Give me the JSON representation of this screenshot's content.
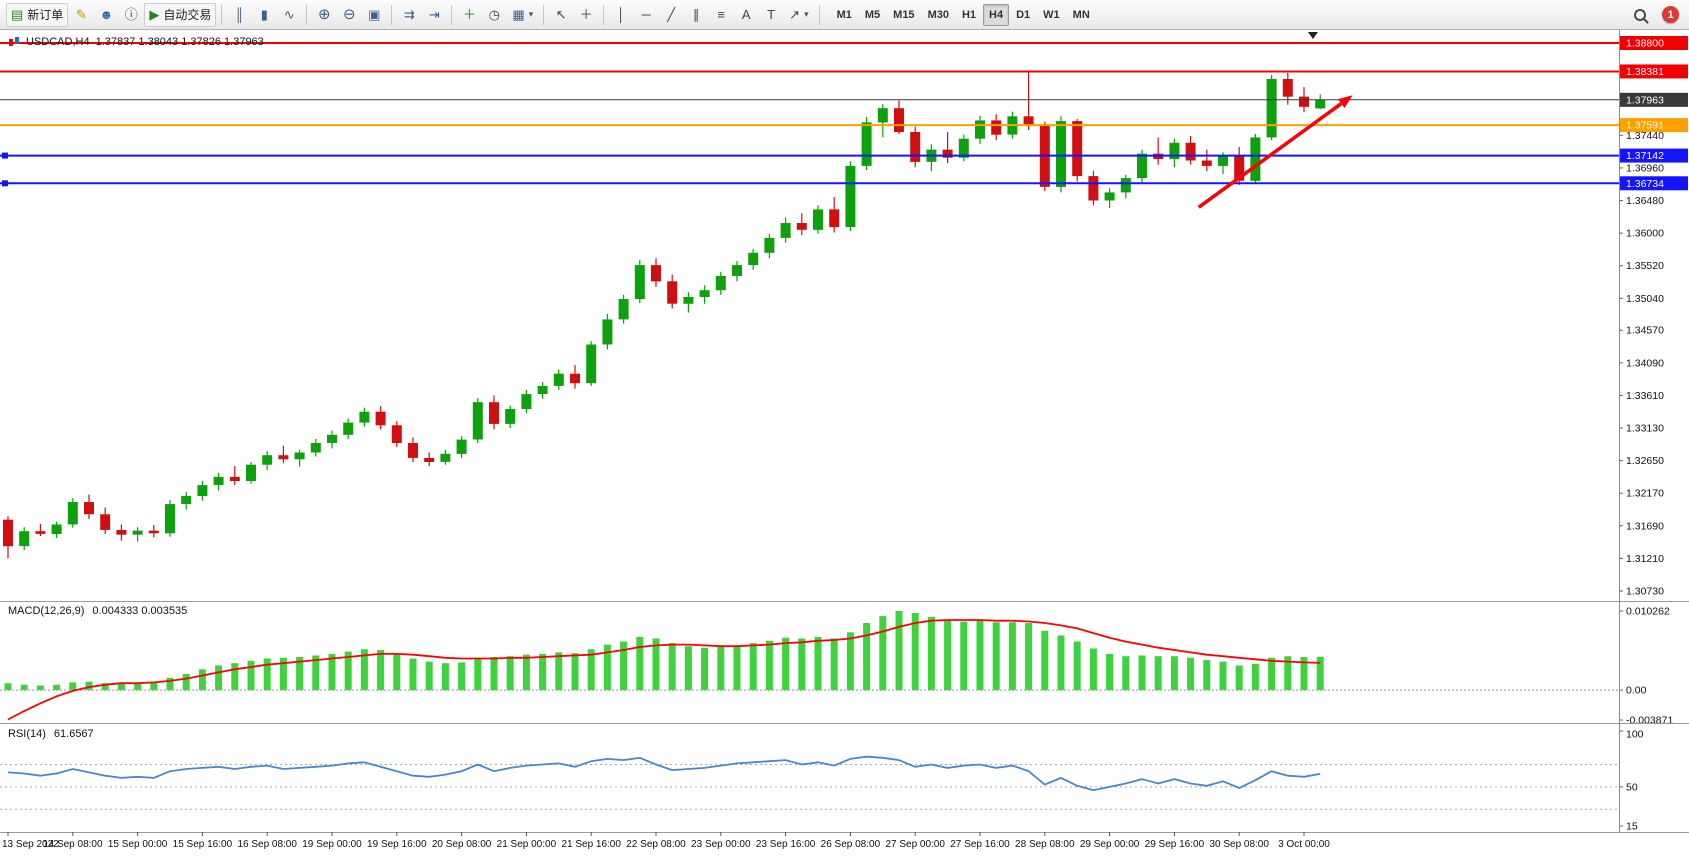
{
  "toolbar": {
    "new_order_label": "新订单",
    "algo_trading_label": "自动交易",
    "timeframes": [
      "M1",
      "M5",
      "M15",
      "M30",
      "H1",
      "H4",
      "D1",
      "W1",
      "MN"
    ],
    "active_timeframe": "H4",
    "notification_count": "1"
  },
  "icons": {
    "new_order": "▤",
    "metaeditor": "✎",
    "community": "☻",
    "help": "ⓘ",
    "algo_trading": "▶",
    "chart_bars": "║",
    "chart_candles": "▮",
    "chart_line": "∿",
    "zoom_in": "⊕",
    "zoom_out": "⊖",
    "tile_windows": "▣",
    "auto_scroll": "⇉",
    "chart_shift": "⇥",
    "indicators": "＋",
    "periods": "◷",
    "templates": "▦",
    "dropdown": "▾",
    "cursor": "↖",
    "crosshair": "＋",
    "vertical_line": "│",
    "horizontal_line": "─",
    "trendline": "╱",
    "channel": "∥",
    "fibonacci": "≡",
    "text_tool": "A",
    "label_tool": "T",
    "arrow_tool": "↗"
  },
  "colors": {
    "bull": "#0da10d",
    "bear": "#d01010",
    "macd_hist": "#3fd23f",
    "macd_signal": "#ff0000",
    "rsi_line": "#4a86c8",
    "line_red": "#f00000",
    "line_blue": "#1414ff",
    "line_orange": "#ffa000",
    "line_current": "#3a3a3a",
    "arrow": "#ff0000",
    "axis_text": "#111111"
  },
  "chart_data": [
    {
      "id": "price",
      "type": "candlestick",
      "symbol": "USDCAD",
      "timeframe": "H4",
      "symbol_label": "USDCAD,H4",
      "ohlc_label": "1.37837 1.38043 1.37826 1.37963",
      "ylim": [
        1.3073,
        1.388
      ],
      "ohlc": [
        [
          1.3178,
          1.3183,
          1.3121,
          1.3139
        ],
        [
          1.3139,
          1.3167,
          1.3133,
          1.3161
        ],
        [
          1.3161,
          1.3172,
          1.3154,
          1.3157
        ],
        [
          1.3157,
          1.3175,
          1.3151,
          1.3171
        ],
        [
          1.3171,
          1.321,
          1.3166,
          1.3204
        ],
        [
          1.3204,
          1.3215,
          1.3179,
          1.3186
        ],
        [
          1.3186,
          1.3196,
          1.3157,
          1.3163
        ],
        [
          1.3163,
          1.3171,
          1.3147,
          1.3156
        ],
        [
          1.3156,
          1.3167,
          1.3146,
          1.3162
        ],
        [
          1.3162,
          1.317,
          1.3152,
          1.3158
        ],
        [
          1.3158,
          1.3207,
          1.3153,
          1.3201
        ],
        [
          1.3201,
          1.3219,
          1.3193,
          1.3213
        ],
        [
          1.3213,
          1.3235,
          1.3206,
          1.3229
        ],
        [
          1.3229,
          1.3247,
          1.3221,
          1.3241
        ],
        [
          1.3241,
          1.3257,
          1.3229,
          1.3235
        ],
        [
          1.3235,
          1.3263,
          1.3231,
          1.3259
        ],
        [
          1.3259,
          1.3279,
          1.3251,
          1.3273
        ],
        [
          1.3273,
          1.3287,
          1.3261,
          1.3267
        ],
        [
          1.3267,
          1.3281,
          1.3256,
          1.3277
        ],
        [
          1.3277,
          1.3297,
          1.3271,
          1.3291
        ],
        [
          1.3291,
          1.3309,
          1.3283,
          1.3303
        ],
        [
          1.3303,
          1.3327,
          1.3297,
          1.3321
        ],
        [
          1.3321,
          1.3343,
          1.3315,
          1.3337
        ],
        [
          1.3337,
          1.3345,
          1.3311,
          1.3317
        ],
        [
          1.3317,
          1.3323,
          1.3285,
          1.3291
        ],
        [
          1.3291,
          1.3299,
          1.3263,
          1.3269
        ],
        [
          1.3269,
          1.3277,
          1.3257,
          1.3263
        ],
        [
          1.3263,
          1.3281,
          1.3259,
          1.3275
        ],
        [
          1.3275,
          1.3301,
          1.3269,
          1.3296
        ],
        [
          1.3296,
          1.3357,
          1.3291,
          1.3351
        ],
        [
          1.3351,
          1.3361,
          1.3311,
          1.3319
        ],
        [
          1.3319,
          1.3346,
          1.3313,
          1.3341
        ],
        [
          1.3341,
          1.3369,
          1.3335,
          1.3363
        ],
        [
          1.3363,
          1.3381,
          1.3356,
          1.3375
        ],
        [
          1.3375,
          1.3399,
          1.3369,
          1.3393
        ],
        [
          1.3393,
          1.3406,
          1.3371,
          1.3379
        ],
        [
          1.3379,
          1.3441,
          1.3375,
          1.3436
        ],
        [
          1.3436,
          1.3481,
          1.3429,
          1.3473
        ],
        [
          1.3473,
          1.3509,
          1.3467,
          1.3503
        ],
        [
          1.3503,
          1.3561,
          1.3497,
          1.3553
        ],
        [
          1.3553,
          1.3563,
          1.3521,
          1.3529
        ],
        [
          1.3529,
          1.3539,
          1.3489,
          1.3496
        ],
        [
          1.3496,
          1.3513,
          1.3483,
          1.3506
        ],
        [
          1.3506,
          1.3523,
          1.3496,
          1.3516
        ],
        [
          1.3516,
          1.3543,
          1.3509,
          1.3537
        ],
        [
          1.3537,
          1.3559,
          1.3529,
          1.3553
        ],
        [
          1.3553,
          1.3577,
          1.3546,
          1.3571
        ],
        [
          1.3571,
          1.3599,
          1.3563,
          1.3593
        ],
        [
          1.3593,
          1.3623,
          1.3586,
          1.3615
        ],
        [
          1.3615,
          1.3629,
          1.3597,
          1.3605
        ],
        [
          1.3605,
          1.3641,
          1.3599,
          1.3635
        ],
        [
          1.3635,
          1.3653,
          1.3601,
          1.3609
        ],
        [
          1.3609,
          1.3706,
          1.3603,
          1.3699
        ],
        [
          1.3699,
          1.3771,
          1.3693,
          1.3763
        ],
        [
          1.3763,
          1.379,
          1.3741,
          1.3784
        ],
        [
          1.3784,
          1.3795,
          1.3746,
          1.3749
        ],
        [
          1.3749,
          1.3757,
          1.3697,
          1.3705
        ],
        [
          1.3705,
          1.3731,
          1.3691,
          1.3723
        ],
        [
          1.3723,
          1.3749,
          1.3703,
          1.3711
        ],
        [
          1.3711,
          1.3745,
          1.3706,
          1.3739
        ],
        [
          1.3739,
          1.3773,
          1.3731,
          1.3766
        ],
        [
          1.3766,
          1.3775,
          1.3737,
          1.3745
        ],
        [
          1.3745,
          1.3779,
          1.3739,
          1.3772
        ],
        [
          1.3772,
          1.3838,
          1.3752,
          1.3758
        ],
        [
          1.3758,
          1.3764,
          1.3662,
          1.3668
        ],
        [
          1.3668,
          1.3772,
          1.366,
          1.3765
        ],
        [
          1.3765,
          1.3768,
          1.3676,
          1.3684
        ],
        [
          1.3684,
          1.3692,
          1.3641,
          1.3648
        ],
        [
          1.3648,
          1.3666,
          1.3637,
          1.366
        ],
        [
          1.366,
          1.3686,
          1.3651,
          1.3681
        ],
        [
          1.3681,
          1.3723,
          1.3675,
          1.3717
        ],
        [
          1.3717,
          1.3741,
          1.3701,
          1.3709
        ],
        [
          1.3709,
          1.3739,
          1.3697,
          1.3733
        ],
        [
          1.3733,
          1.3743,
          1.3701,
          1.3707
        ],
        [
          1.3707,
          1.3723,
          1.3691,
          1.3699
        ],
        [
          1.3699,
          1.3719,
          1.3687,
          1.3713
        ],
        [
          1.3713,
          1.3727,
          1.3671,
          1.3677
        ],
        [
          1.3677,
          1.3746,
          1.3673,
          1.3741
        ],
        [
          1.3741,
          1.3833,
          1.3737,
          1.3827
        ],
        [
          1.3827,
          1.3836,
          1.3789,
          1.3801
        ],
        [
          1.3801,
          1.3815,
          1.3778,
          1.3786
        ],
        [
          1.37837,
          1.38043,
          1.37826,
          1.37963
        ]
      ],
      "price_lines": [
        {
          "price": 1.388,
          "color_key": "line_red",
          "width": 2,
          "badge": true
        },
        {
          "price": 1.38381,
          "color_key": "line_red",
          "width": 2,
          "badge": true
        },
        {
          "price": 1.37963,
          "color_key": "line_current",
          "width": 1,
          "badge": true,
          "current": true
        },
        {
          "price": 1.37591,
          "color_key": "line_orange",
          "width": 2,
          "badge": true
        },
        {
          "price": 1.37142,
          "color_key": "line_blue",
          "width": 2,
          "badge": true,
          "handles": true
        },
        {
          "price": 1.36734,
          "color_key": "line_blue",
          "width": 2,
          "badge": true,
          "handles": true
        }
      ],
      "axis_labels": [
        1.3744,
        1.3696,
        1.3648,
        1.36,
        1.3552,
        1.3504,
        1.3457,
        1.3409,
        1.3361,
        1.3313,
        1.3265,
        1.3217,
        1.3169,
        1.3121,
        1.3073
      ],
      "time_labels": [
        "13 Sep 2022",
        "14 Sep 08:00",
        "15 Sep 00:00",
        "15 Sep 16:00",
        "16 Sep 08:00",
        "19 Sep 00:00",
        "19 Sep 16:00",
        "20 Sep 08:00",
        "21 Sep 00:00",
        "21 Sep 16:00",
        "22 Sep 08:00",
        "23 Sep 00:00",
        "23 Sep 16:00",
        "26 Sep 08:00",
        "27 Sep 00:00",
        "27 Sep 16:00",
        "28 Sep 08:00",
        "29 Sep 00:00",
        "29 Sep 16:00",
        "30 Sep 08:00",
        "3 Oct 00:00"
      ],
      "candles_per_time_label": 4,
      "trend_arrow": {
        "x1_candle": 73.5,
        "y1_price": 1.3638,
        "x2_candle": 83,
        "y2_price": 1.3803
      }
    },
    {
      "id": "macd",
      "type": "bar",
      "title": "MACD(12,26,9)",
      "values_label": "0.004333 0.003535",
      "ylim": [
        -0.003871,
        0.010262
      ],
      "axis_labels": [
        {
          "text": "0.010262",
          "v": 0.010262
        },
        {
          "text": "0.00",
          "v": 0
        },
        {
          "text": "-0.003871",
          "v": -0.003871
        }
      ],
      "histogram": [
        0.0009,
        0.0007,
        0.0006,
        0.0007,
        0.001,
        0.0011,
        0.0009,
        0.0008,
        0.0009,
        0.0011,
        0.0016,
        0.0021,
        0.0027,
        0.0032,
        0.0035,
        0.0038,
        0.0041,
        0.0042,
        0.0043,
        0.0045,
        0.0047,
        0.005,
        0.0053,
        0.0052,
        0.0047,
        0.0041,
        0.0037,
        0.0035,
        0.0036,
        0.0042,
        0.0043,
        0.0044,
        0.0046,
        0.0047,
        0.0049,
        0.0048,
        0.0053,
        0.0059,
        0.0063,
        0.0069,
        0.0067,
        0.0061,
        0.0057,
        0.0055,
        0.0056,
        0.0058,
        0.0061,
        0.0064,
        0.0068,
        0.0067,
        0.0069,
        0.0067,
        0.0075,
        0.0087,
        0.0096,
        0.010262,
        0.01,
        0.0095,
        0.0091,
        0.0089,
        0.009,
        0.0088,
        0.0088,
        0.0087,
        0.0077,
        0.0071,
        0.0063,
        0.0054,
        0.0047,
        0.0044,
        0.0045,
        0.0044,
        0.0044,
        0.0042,
        0.0039,
        0.0037,
        0.0032,
        0.0034,
        0.0042,
        0.0044,
        0.0043,
        0.004333
      ],
      "signal": [
        -0.0038,
        -0.0027,
        -0.0017,
        -0.0008,
        -0.0001,
        0.0004,
        0.0007,
        0.0009,
        0.0009,
        0.001,
        0.0012,
        0.0015,
        0.0019,
        0.0023,
        0.0027,
        0.003,
        0.0033,
        0.0035,
        0.0037,
        0.0039,
        0.0041,
        0.0043,
        0.0045,
        0.0047,
        0.0047,
        0.0046,
        0.0044,
        0.0042,
        0.0041,
        0.0041,
        0.0041,
        0.0042,
        0.0042,
        0.0043,
        0.0044,
        0.0045,
        0.0046,
        0.0049,
        0.0052,
        0.0056,
        0.0058,
        0.0059,
        0.0059,
        0.0058,
        0.0057,
        0.0057,
        0.0058,
        0.0059,
        0.0061,
        0.0062,
        0.0064,
        0.0065,
        0.0067,
        0.0071,
        0.0076,
        0.0082,
        0.0087,
        0.009,
        0.0091,
        0.0091,
        0.0091,
        0.009,
        0.009,
        0.0089,
        0.0087,
        0.0084,
        0.008,
        0.0074,
        0.0068,
        0.0063,
        0.0059,
        0.0055,
        0.0052,
        0.0049,
        0.0046,
        0.0044,
        0.0042,
        0.004,
        0.0038,
        0.0037,
        0.0036,
        0.003535
      ]
    },
    {
      "id": "rsi",
      "type": "line",
      "title": "RSI(14)",
      "values_label": "61.6567",
      "ylim": [
        15,
        100
      ],
      "levels": [
        70,
        50,
        30
      ],
      "axis_labels": [
        {
          "text": "100",
          "v": 100
        },
        {
          "text": "50",
          "v": 50
        },
        {
          "text": "15",
          "v": 15
        }
      ],
      "values": [
        63,
        62,
        60,
        62,
        66,
        63,
        60,
        58,
        59,
        58,
        64,
        66,
        67,
        68,
        66,
        68,
        69,
        66,
        67,
        68,
        69,
        71,
        72,
        68,
        64,
        60,
        59,
        61,
        64,
        70,
        64,
        67,
        69,
        70,
        71,
        68,
        73,
        75,
        74,
        76,
        70,
        65,
        66,
        67,
        69,
        71,
        72,
        73,
        74,
        70,
        72,
        69,
        75,
        77,
        76,
        74,
        68,
        70,
        67,
        69,
        70,
        67,
        69,
        64,
        52,
        58,
        51,
        47,
        50,
        53,
        57,
        53,
        57,
        53,
        51,
        55,
        49,
        56,
        64,
        60,
        59,
        61.6567
      ]
    }
  ]
}
